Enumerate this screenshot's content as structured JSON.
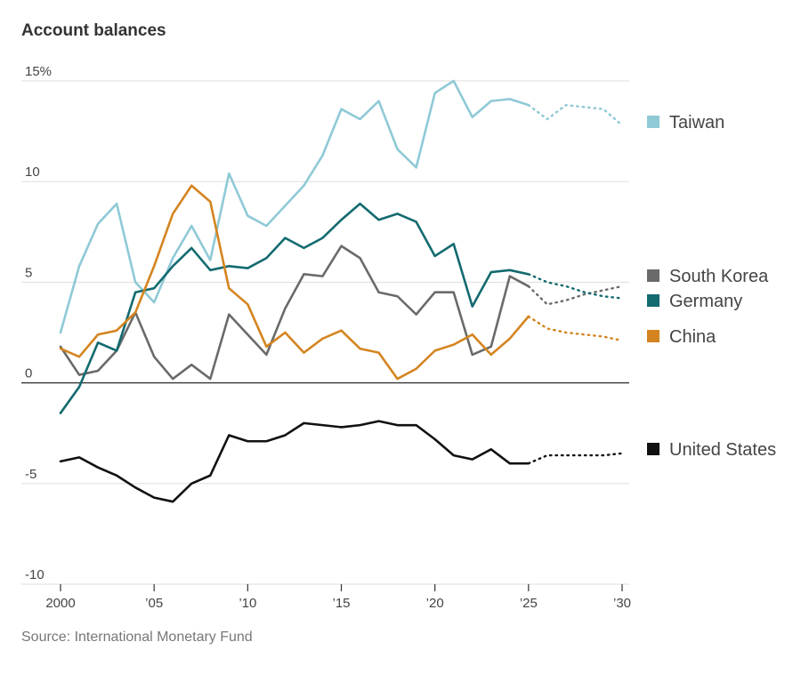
{
  "chart_data": {
    "type": "line",
    "title": "Account balances",
    "source": "Source: International Monetary Fund",
    "xlabel": "",
    "ylabel": "",
    "ylim": [
      -10,
      15
    ],
    "xlim": [
      2000,
      2030
    ],
    "y_ticks": [
      {
        "value": 15,
        "label": "15%"
      },
      {
        "value": 10,
        "label": "10"
      },
      {
        "value": 5,
        "label": "5"
      },
      {
        "value": 0,
        "label": "0"
      },
      {
        "value": -5,
        "label": "-5"
      },
      {
        "value": -10,
        "label": "-10"
      }
    ],
    "x_ticks": [
      {
        "value": 2000,
        "label": "2000"
      },
      {
        "value": 2005,
        "label": "’05"
      },
      {
        "value": 2010,
        "label": "’10"
      },
      {
        "value": 2015,
        "label": "’15"
      },
      {
        "value": 2020,
        "label": "’20"
      },
      {
        "value": 2025,
        "label": "’25"
      },
      {
        "value": 2030,
        "label": "’30"
      }
    ],
    "actual_years": [
      2000,
      2001,
      2002,
      2003,
      2004,
      2005,
      2006,
      2007,
      2008,
      2009,
      2010,
      2011,
      2012,
      2013,
      2014,
      2015,
      2016,
      2017,
      2018,
      2019,
      2020,
      2021,
      2022,
      2023,
      2024,
      2025
    ],
    "projection_years": [
      2025,
      2026,
      2027,
      2028,
      2029,
      2030
    ],
    "series": [
      {
        "name": "Taiwan",
        "color": "#8fc9d6",
        "values": [
          2.5,
          5.8,
          7.9,
          8.9,
          5.0,
          4.0,
          6.2,
          7.8,
          6.1,
          10.4,
          8.3,
          7.8,
          8.8,
          9.8,
          11.3,
          13.6,
          13.1,
          14.0,
          11.6,
          10.7,
          14.4,
          15.0,
          13.2,
          14.0,
          14.1,
          13.8
        ],
        "projection": [
          13.8,
          13.1,
          13.8,
          13.7,
          13.6,
          12.8
        ]
      },
      {
        "name": "South Korea",
        "color": "#6a6a6a",
        "values": [
          1.8,
          0.4,
          0.6,
          1.6,
          3.5,
          1.3,
          0.2,
          0.9,
          0.2,
          3.4,
          2.4,
          1.4,
          3.7,
          5.4,
          5.3,
          6.8,
          6.2,
          4.5,
          4.3,
          3.4,
          4.5,
          4.5,
          1.4,
          1.8,
          5.3,
          4.8
        ],
        "projection": [
          4.8,
          3.9,
          4.1,
          4.4,
          4.6,
          4.8
        ]
      },
      {
        "name": "Germany",
        "color": "#136a6f",
        "values": [
          -1.5,
          -0.2,
          2.0,
          1.6,
          4.5,
          4.7,
          5.8,
          6.7,
          5.6,
          5.8,
          5.7,
          6.2,
          7.2,
          6.7,
          7.2,
          8.1,
          8.9,
          8.1,
          8.4,
          8.0,
          6.3,
          6.9,
          3.8,
          5.5,
          5.6,
          5.4
        ],
        "projection": [
          5.4,
          5.0,
          4.8,
          4.5,
          4.3,
          4.2
        ]
      },
      {
        "name": "China",
        "color": "#d4841f",
        "values": [
          1.7,
          1.3,
          2.4,
          2.6,
          3.5,
          5.8,
          8.4,
          9.8,
          9.0,
          4.7,
          3.9,
          1.8,
          2.5,
          1.5,
          2.2,
          2.6,
          1.7,
          1.5,
          0.2,
          0.7,
          1.6,
          1.9,
          2.4,
          1.4,
          2.2,
          3.3
        ],
        "projection": [
          3.3,
          2.7,
          2.5,
          2.4,
          2.3,
          2.1
        ]
      },
      {
        "name": "United States",
        "color": "#111111",
        "values": [
          -3.9,
          -3.7,
          -4.2,
          -4.6,
          -5.2,
          -5.7,
          -5.9,
          -5.0,
          -4.6,
          -2.6,
          -2.9,
          -2.9,
          -2.6,
          -2.0,
          -2.1,
          -2.2,
          -2.1,
          -1.9,
          -2.1,
          -2.1,
          -2.8,
          -3.6,
          -3.8,
          -3.3,
          -4.0,
          -4.0
        ],
        "projection": [
          -4.0,
          -3.6,
          -3.6,
          -3.6,
          -3.6,
          -3.5
        ]
      }
    ],
    "legend": [
      {
        "name": "Taiwan",
        "color": "#8fc9d6"
      },
      {
        "name": "South Korea",
        "color": "#6a6a6a"
      },
      {
        "name": "Germany",
        "color": "#136a6f"
      },
      {
        "name": "China",
        "color": "#d4841f"
      },
      {
        "name": "United States",
        "color": "#111111"
      }
    ]
  }
}
